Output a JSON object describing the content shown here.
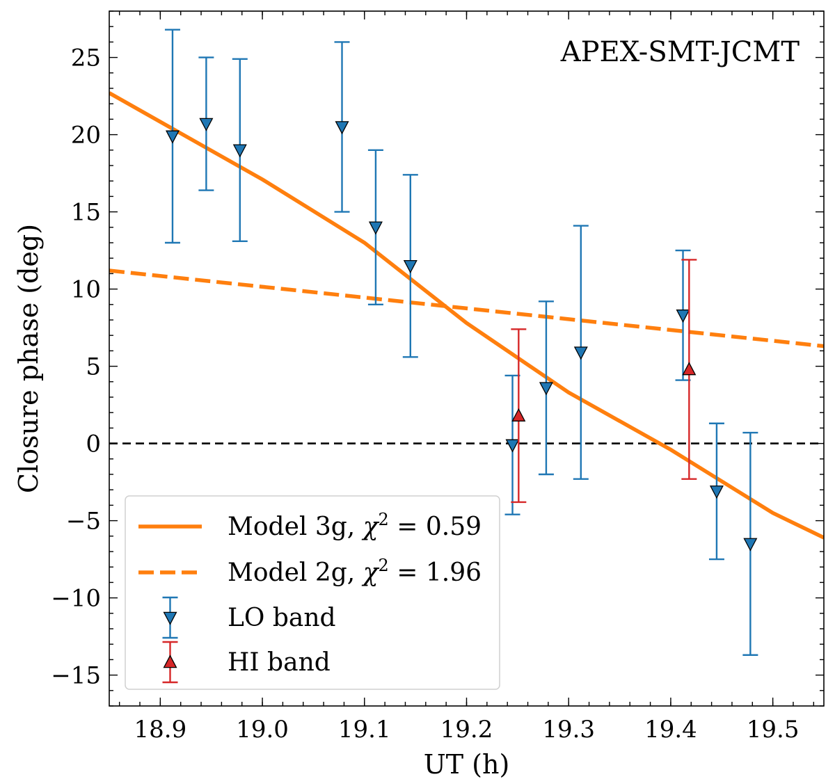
{
  "chart_data": {
    "type": "scatter",
    "title": "APEX-SMT-JCMT",
    "xlabel": "UT (h)",
    "ylabel": "Closure phase (deg)",
    "xlim": [
      18.85,
      19.55
    ],
    "ylim": [
      -17,
      28
    ],
    "x_ticks": [
      18.9,
      19.0,
      19.1,
      19.2,
      19.3,
      19.4,
      19.5
    ],
    "x_tick_labels": [
      "18.9",
      "19.0",
      "19.1",
      "19.2",
      "19.3",
      "19.4",
      "19.5"
    ],
    "y_ticks": [
      -15,
      -10,
      -5,
      0,
      5,
      10,
      15,
      20,
      25
    ],
    "y_tick_labels": [
      "−15",
      "−10",
      "−5",
      "0",
      "5",
      "10",
      "15",
      "20",
      "25"
    ],
    "zero_line": 0,
    "legend_position": "lower-left",
    "colors": {
      "model": "#ff7f0e",
      "lo": "#1f77b4",
      "hi": "#d62728"
    },
    "series": [
      {
        "name": "LO band",
        "marker": "triangle-down",
        "color": "#1f77b4",
        "points": [
          {
            "x": 18.912,
            "y": 19.9,
            "err": 6.9
          },
          {
            "x": 18.945,
            "y": 20.7,
            "err": 4.3
          },
          {
            "x": 18.978,
            "y": 19.0,
            "err": 5.9
          },
          {
            "x": 19.078,
            "y": 20.5,
            "err": 5.5
          },
          {
            "x": 19.111,
            "y": 14.0,
            "err": 5.0
          },
          {
            "x": 19.145,
            "y": 11.5,
            "err": 5.9
          },
          {
            "x": 19.245,
            "y": -0.1,
            "err": 4.5
          },
          {
            "x": 19.278,
            "y": 3.6,
            "err": 5.6
          },
          {
            "x": 19.312,
            "y": 5.9,
            "err": 8.2
          },
          {
            "x": 19.412,
            "y": 8.3,
            "err": 4.2
          },
          {
            "x": 19.445,
            "y": -3.1,
            "err": 4.4
          },
          {
            "x": 19.478,
            "y": -6.5,
            "err": 7.2
          }
        ]
      },
      {
        "name": "HI band",
        "marker": "triangle-up",
        "color": "#d62728",
        "points": [
          {
            "x": 19.251,
            "y": 1.8,
            "err": 5.6
          },
          {
            "x": 19.418,
            "y": 4.8,
            "err": 7.1
          }
        ]
      }
    ],
    "models": [
      {
        "name": "Model 3g",
        "chi2": "0.59",
        "style": "solid",
        "color": "#ff7f0e",
        "points": [
          [
            18.85,
            22.7
          ],
          [
            19.0,
            17.1
          ],
          [
            19.1,
            13.0
          ],
          [
            19.2,
            7.8
          ],
          [
            19.3,
            3.3
          ],
          [
            19.4,
            -0.4
          ],
          [
            19.5,
            -4.5
          ],
          [
            19.55,
            -6.1
          ]
        ]
      },
      {
        "name": "Model 2g",
        "chi2": "1.96",
        "style": "dashed",
        "color": "#ff7f0e",
        "points": [
          [
            18.85,
            11.2
          ],
          [
            19.55,
            6.3
          ]
        ]
      }
    ]
  }
}
